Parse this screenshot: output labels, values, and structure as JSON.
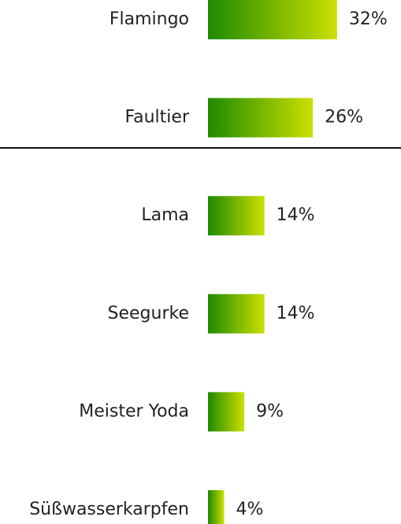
{
  "chart_data": {
    "type": "bar",
    "categories": [
      "Flamingo",
      "Faultier",
      "Lama",
      "Seegurke",
      "Meister Yoda",
      "Süßwasserkarpfen"
    ],
    "values": [
      32,
      26,
      14,
      14,
      9,
      4
    ],
    "value_labels": [
      "32%",
      "26%",
      "14%",
      "14%",
      "9%",
      "4%"
    ],
    "gradient": [
      "#1e8a00",
      "#cce000"
    ]
  }
}
